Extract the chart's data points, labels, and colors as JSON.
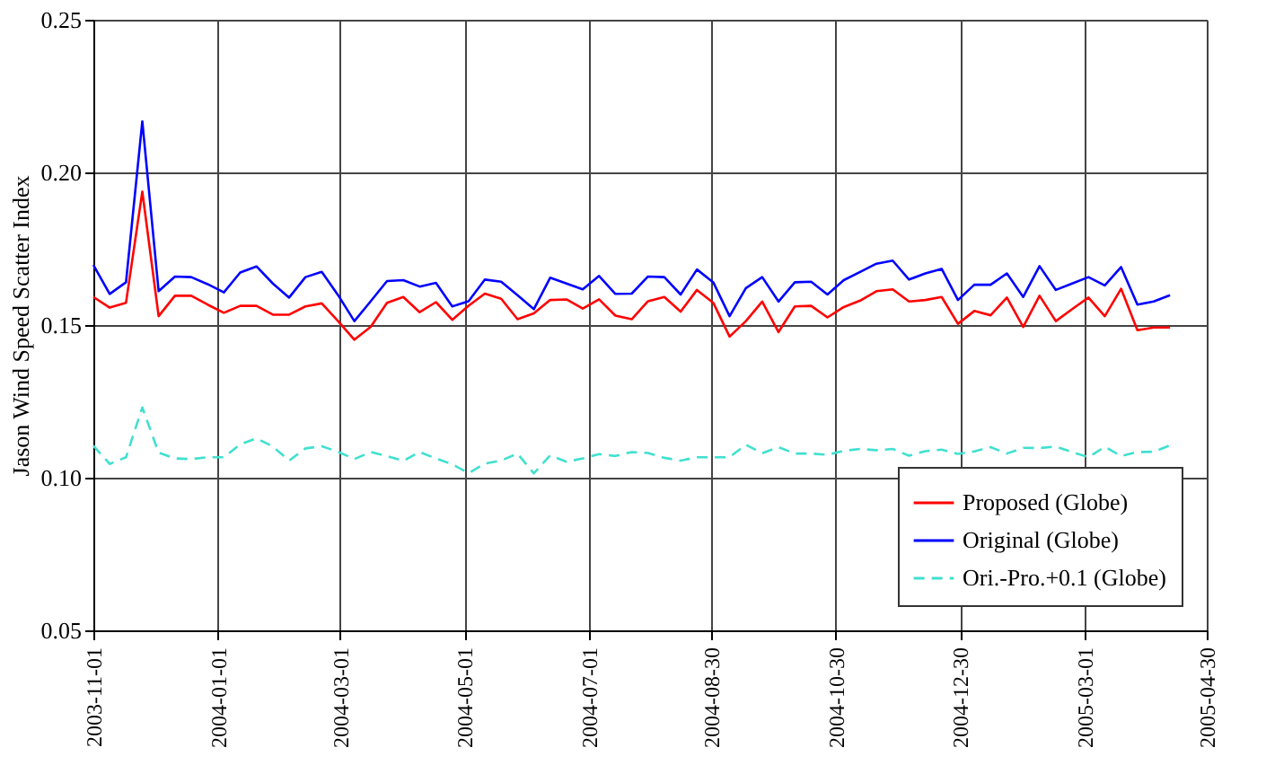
{
  "chart_data": {
    "type": "line",
    "ylabel": "Jason Wind Speed Scatter Index",
    "x": [
      "2003-11-01",
      "2003-11-09",
      "2003-11-17",
      "2003-11-25",
      "2003-12-03",
      "2003-12-11",
      "2003-12-19",
      "2003-12-27",
      "2004-01-04",
      "2004-01-12",
      "2004-01-20",
      "2004-01-28",
      "2004-02-05",
      "2004-02-13",
      "2004-02-21",
      "2004-02-29",
      "2004-03-08",
      "2004-03-16",
      "2004-03-24",
      "2004-04-01",
      "2004-04-09",
      "2004-04-17",
      "2004-04-25",
      "2004-05-03",
      "2004-05-11",
      "2004-05-19",
      "2004-05-27",
      "2004-06-04",
      "2004-06-12",
      "2004-06-20",
      "2004-06-28",
      "2004-07-06",
      "2004-07-14",
      "2004-07-22",
      "2004-07-30",
      "2004-08-07",
      "2004-08-15",
      "2004-08-23",
      "2004-08-31",
      "2004-09-08",
      "2004-09-16",
      "2004-09-24",
      "2004-10-02",
      "2004-10-10",
      "2004-10-18",
      "2004-10-26",
      "2004-11-03",
      "2004-11-11",
      "2004-11-19",
      "2004-11-27",
      "2004-12-05",
      "2004-12-13",
      "2004-12-21",
      "2004-12-29",
      "2005-01-06",
      "2005-01-14",
      "2005-01-22",
      "2005-01-30",
      "2005-02-07",
      "2005-02-15",
      "2005-02-23",
      "2005-03-03",
      "2005-03-11",
      "2005-03-19",
      "2005-03-27",
      "2005-04-04",
      "2005-04-12"
    ],
    "series": [
      {
        "name": "Proposed (Globe)",
        "color": "#ff0000",
        "line_style": "solid",
        "values": [
          0.1592,
          0.1557,
          0.1573,
          0.1937,
          0.1529,
          0.1596,
          0.1596,
          0.1567,
          0.154,
          0.1563,
          0.1563,
          0.1534,
          0.1534,
          0.1561,
          0.1571,
          0.1513,
          0.1452,
          0.1494,
          0.1573,
          0.1592,
          0.1542,
          0.1575,
          0.1517,
          0.1563,
          0.1603,
          0.1586,
          0.1519,
          0.1538,
          0.1582,
          0.1584,
          0.1554,
          0.1584,
          0.1531,
          0.1519,
          0.1578,
          0.1592,
          0.1544,
          0.1615,
          0.1573,
          0.1462,
          0.1513,
          0.1577,
          0.1477,
          0.1561,
          0.1563,
          0.1525,
          0.1559,
          0.158,
          0.1611,
          0.1617,
          0.1577,
          0.1582,
          0.1592,
          0.1504,
          0.1546,
          0.1532,
          0.159,
          0.1494,
          0.1596,
          0.1513,
          0.1552,
          0.159,
          0.1529,
          0.1619,
          0.1483,
          0.1492,
          0.1492
        ]
      },
      {
        "name": "Original (Globe)",
        "color": "#0000ff",
        "line_style": "solid",
        "values": [
          0.1697,
          0.1602,
          0.164,
          0.2167,
          0.1611,
          0.1659,
          0.1657,
          0.1634,
          0.1607,
          0.1672,
          0.1692,
          0.1636,
          0.159,
          0.1657,
          0.1674,
          0.1598,
          0.1513,
          0.1578,
          0.1644,
          0.1647,
          0.1626,
          0.1638,
          0.1561,
          0.1578,
          0.1649,
          0.1642,
          0.1598,
          0.1552,
          0.1655,
          0.1636,
          0.1617,
          0.1661,
          0.1602,
          0.1603,
          0.1659,
          0.1657,
          0.16,
          0.1682,
          0.164,
          0.1529,
          0.1621,
          0.1657,
          0.1577,
          0.164,
          0.1642,
          0.16,
          0.1647,
          0.1674,
          0.1701,
          0.1711,
          0.1649,
          0.1669,
          0.1684,
          0.1582,
          0.1632,
          0.1632,
          0.1669,
          0.1592,
          0.1693,
          0.1615,
          0.1636,
          0.1657,
          0.163,
          0.169,
          0.1567,
          0.1577,
          0.1598
        ]
      },
      {
        "name": "Ori.-Pro.+0.1 (Globe)",
        "color": "#40e0d0",
        "line_style": "dashed",
        "values": [
          0.1105,
          0.1045,
          0.1067,
          0.123,
          0.1082,
          0.1063,
          0.1061,
          0.1067,
          0.1067,
          0.1109,
          0.1129,
          0.1102,
          0.1056,
          0.1096,
          0.1103,
          0.1085,
          0.1061,
          0.1084,
          0.1071,
          0.1055,
          0.1084,
          0.1063,
          0.1044,
          0.1015,
          0.1046,
          0.1056,
          0.1079,
          0.1014,
          0.1073,
          0.1052,
          0.1063,
          0.1077,
          0.1071,
          0.1084,
          0.1081,
          0.1065,
          0.1056,
          0.1067,
          0.1067,
          0.1067,
          0.1108,
          0.108,
          0.11,
          0.1079,
          0.1079,
          0.1075,
          0.1088,
          0.1094,
          0.109,
          0.1094,
          0.1072,
          0.1087,
          0.1092,
          0.1078,
          0.1086,
          0.11,
          0.1079,
          0.1098,
          0.1097,
          0.1102,
          0.1084,
          0.1067,
          0.1101,
          0.1071,
          0.1084,
          0.1085,
          0.1106
        ]
      }
    ],
    "xlim": [
      "2003-11-01",
      "2005-04-30"
    ],
    "xticks": [
      "2003-11-01",
      "2004-01-01",
      "2004-03-01",
      "2004-05-01",
      "2004-07-01",
      "2004-08-30",
      "2004-10-30",
      "2004-12-30",
      "2005-03-01",
      "2005-04-30"
    ],
    "ylim": [
      0.05,
      0.25
    ],
    "yticks": [
      {
        "value": 0.05,
        "label": "0.05"
      },
      {
        "value": 0.1,
        "label": "0.10"
      },
      {
        "value": 0.15,
        "label": "0.15"
      },
      {
        "value": 0.2,
        "label": "0.20"
      },
      {
        "value": 0.25,
        "label": "0.25"
      }
    ],
    "grid": true,
    "legend": "bottom right",
    "marker": "none"
  }
}
